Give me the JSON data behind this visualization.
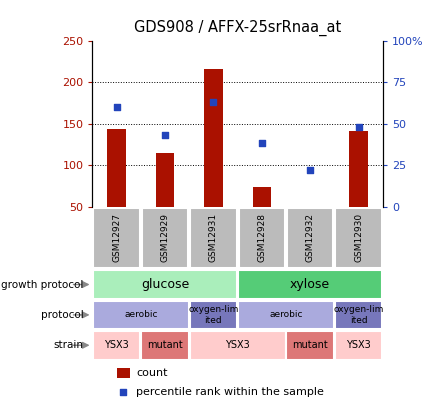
{
  "title": "GDS908 / AFFX-25srRnaa_at",
  "samples": [
    "GSM12927",
    "GSM12929",
    "GSM12931",
    "GSM12928",
    "GSM12932",
    "GSM12930"
  ],
  "counts": [
    143,
    114,
    216,
    74,
    50,
    141
  ],
  "percentiles": [
    60,
    43,
    63,
    38,
    22,
    48
  ],
  "ylim_left": [
    50,
    250
  ],
  "ylim_right": [
    0,
    100
  ],
  "bar_color": "#aa1100",
  "dot_color": "#2244bb",
  "sample_bg_color": "#bbbbbb",
  "growth_protocol_order": [
    "glucose",
    "xylose"
  ],
  "growth_protocol_spans": {
    "glucose": [
      0,
      3
    ],
    "xylose": [
      3,
      6
    ]
  },
  "growth_colors": {
    "glucose": "#aaeebb",
    "xylose": "#55cc77"
  },
  "protocol_segments": [
    {
      "label": "aerobic",
      "start": 0,
      "end": 2,
      "color": "#aaaadd"
    },
    {
      "label": "oxygen-lim\nited",
      "start": 2,
      "end": 3,
      "color": "#7777bb"
    },
    {
      "label": "aerobic",
      "start": 3,
      "end": 5,
      "color": "#aaaadd"
    },
    {
      "label": "oxygen-lim\nited",
      "start": 5,
      "end": 6,
      "color": "#7777bb"
    }
  ],
  "strain_segments": [
    {
      "label": "YSX3",
      "start": 0,
      "end": 1,
      "color": "#ffcccc"
    },
    {
      "label": "mutant",
      "start": 1,
      "end": 2,
      "color": "#dd7777"
    },
    {
      "label": "YSX3",
      "start": 2,
      "end": 4,
      "color": "#ffcccc"
    },
    {
      "label": "mutant",
      "start": 4,
      "end": 5,
      "color": "#dd7777"
    },
    {
      "label": "YSX3",
      "start": 5,
      "end": 6,
      "color": "#ffcccc"
    }
  ],
  "row_labels": [
    "growth protocol",
    "protocol",
    "strain"
  ],
  "legend_items": [
    {
      "label": "count",
      "color": "#aa1100",
      "marker": "s"
    },
    {
      "label": "percentile rank within the sample",
      "color": "#2244bb",
      "marker": "s"
    }
  ]
}
